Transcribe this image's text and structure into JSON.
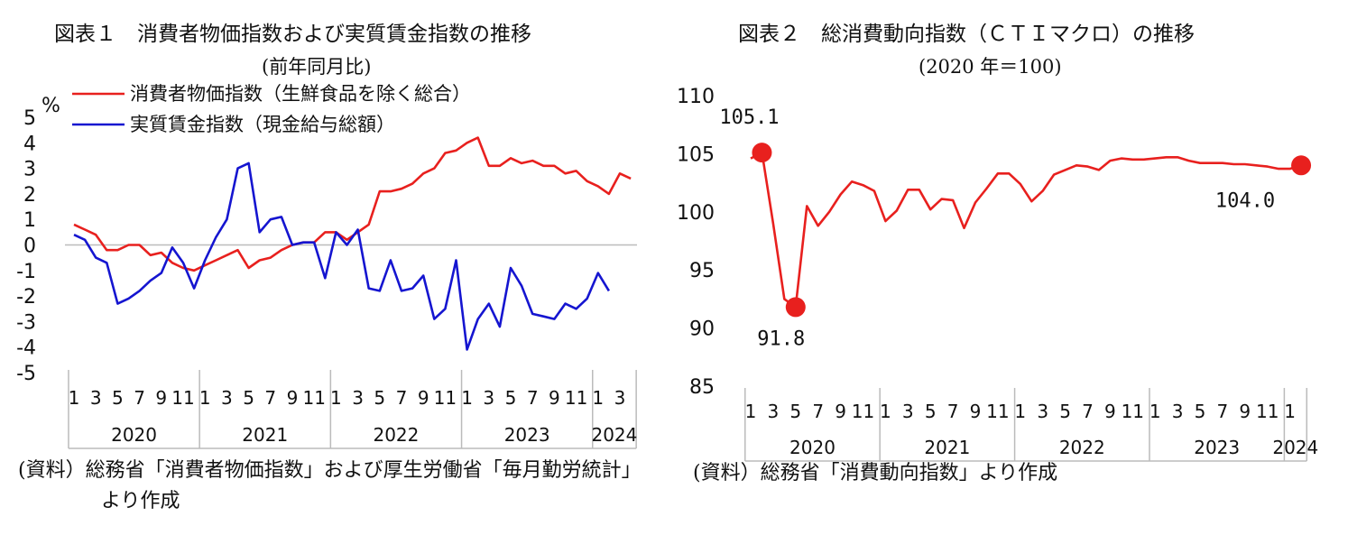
{
  "chart_data": [
    {
      "type": "line",
      "title": "図表１　消費者物価指数および実質賃金指数の推移",
      "subtitle": "(前年同月比)",
      "ylabel": "%",
      "ylim": [
        -5,
        5
      ],
      "yticks": [
        "5",
        "4",
        "3",
        "2",
        "1",
        "0",
        "-1",
        "-2",
        "-3",
        "-4",
        "-5"
      ],
      "xtick_labels": [
        "1",
        "3",
        "5",
        "7",
        "9",
        "11"
      ],
      "xtick_labels_2024": [
        "1",
        "3"
      ],
      "years": [
        "2020",
        "2021",
        "2022",
        "2023",
        "2024"
      ],
      "legend_position": "top-left",
      "series": [
        {
          "name": "消費者物価指数（生鮮食品を除く総合）",
          "color": "#e8201e",
          "values": [
            0.8,
            0.6,
            0.4,
            -0.2,
            -0.2,
            0.0,
            0.0,
            -0.4,
            -0.3,
            -0.7,
            -0.9,
            -1.0,
            -0.8,
            -0.6,
            -0.4,
            -0.2,
            -0.9,
            -0.6,
            -0.5,
            -0.2,
            0.0,
            0.1,
            0.1,
            0.5,
            0.5,
            0.2,
            0.5,
            0.8,
            2.1,
            2.1,
            2.2,
            2.4,
            2.8,
            3.0,
            3.6,
            3.7,
            4.0,
            4.2,
            3.1,
            3.1,
            3.4,
            3.2,
            3.3,
            3.1,
            3.1,
            2.8,
            2.9,
            2.5,
            2.3,
            2.0,
            2.8,
            2.6
          ]
        },
        {
          "name": "実質賃金指数（現金給与総額）",
          "color": "#1515d0",
          "values": [
            0.4,
            0.2,
            -0.5,
            -0.7,
            -2.3,
            -2.1,
            -1.8,
            -1.4,
            -1.1,
            -0.1,
            -0.7,
            -1.7,
            -0.6,
            0.3,
            1.0,
            3.0,
            3.2,
            0.5,
            1.0,
            1.1,
            0.0,
            0.1,
            0.1,
            -1.3,
            0.5,
            0.0,
            0.6,
            -1.7,
            -1.8,
            -0.6,
            -1.8,
            -1.7,
            -1.2,
            -2.9,
            -2.5,
            -0.6,
            -4.1,
            -2.9,
            -2.3,
            -3.2,
            -0.9,
            -1.6,
            -2.7,
            -2.8,
            -2.9,
            -2.3,
            -2.5,
            -2.1,
            -1.1,
            -1.8
          ]
        }
      ]
    },
    {
      "type": "line",
      "title": "図表２　総消費動向指数（ＣＴＩマクロ）の推移",
      "subtitle": "(2020 年＝100)",
      "ylim": [
        85,
        110
      ],
      "yticks": [
        "110",
        "105",
        "100",
        "95",
        "90",
        "85"
      ],
      "xtick_labels": [
        "1",
        "3",
        "5",
        "7",
        "9",
        "11"
      ],
      "xtick_labels_2024": [
        "1",
        "3"
      ],
      "years": [
        "2020",
        "2021",
        "2022",
        "2023",
        "2024"
      ],
      "series": [
        {
          "color": "#e8201e",
          "values": [
            104.6,
            105.1,
            99.0,
            92.5,
            91.8,
            100.5,
            98.8,
            100.0,
            101.5,
            102.6,
            102.3,
            101.8,
            99.2,
            100.1,
            101.9,
            101.9,
            100.2,
            101.1,
            101.0,
            98.6,
            100.8,
            102.0,
            103.3,
            103.3,
            102.4,
            100.9,
            101.8,
            103.2,
            103.6,
            104.0,
            103.9,
            103.6,
            104.4,
            104.6,
            104.5,
            104.5,
            104.6,
            104.7,
            104.7,
            104.4,
            104.2,
            104.2,
            104.2,
            104.1,
            104.1,
            104.0,
            103.9,
            103.7,
            103.7,
            104.0
          ]
        }
      ],
      "annotations": [
        {
          "label": "105.1",
          "index": 1,
          "value": 105.1
        },
        {
          "label": "91.8",
          "index": 4,
          "value": 91.8
        },
        {
          "label": "104.0",
          "index": 49,
          "value": 104.0
        }
      ]
    }
  ],
  "panel1": {
    "title": "図表１　消費者物価指数および実質賃金指数の推移",
    "subtitle": "(前年同月比)",
    "source": "(資料）総務省「消費者物価指数」および厚生労働省「毎月勤労統計」より作成"
  },
  "panel2": {
    "title": "図表２　総消費動向指数（ＣＴＩマクロ）の推移",
    "subtitle": "(2020 年＝100)",
    "source": "(資料）総務省「消費動向指数」より作成"
  }
}
